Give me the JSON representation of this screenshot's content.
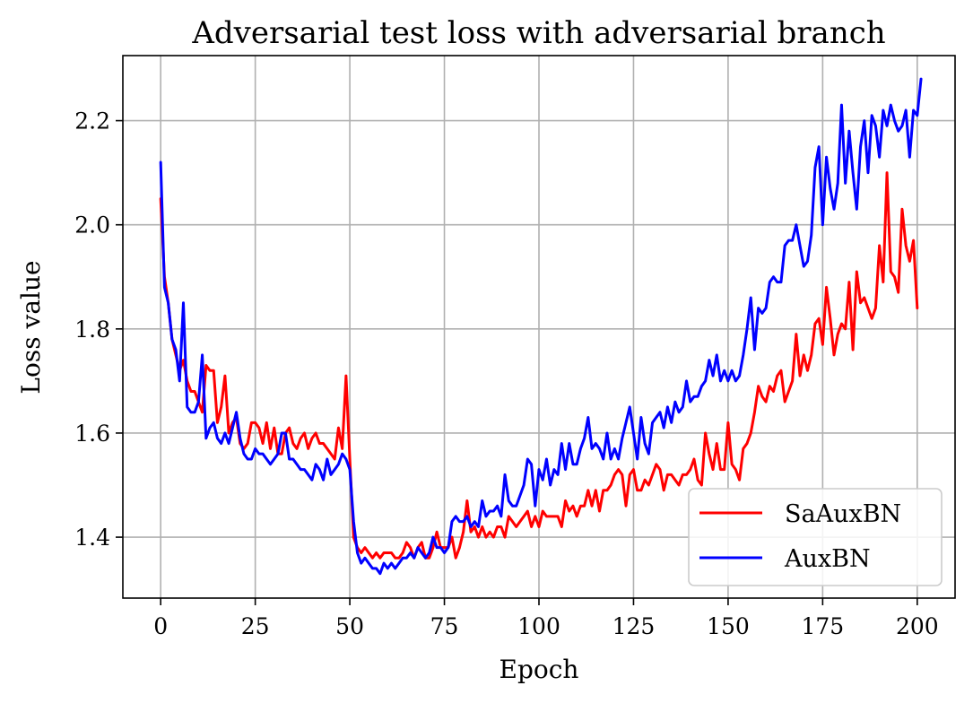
{
  "chart_data": {
    "type": "line",
    "title": "Adversarial test loss with adversarial branch",
    "xlabel": "Epoch",
    "ylabel": "Loss value",
    "xlim": [
      -10,
      210
    ],
    "ylim": [
      1.283,
      2.325
    ],
    "xticks": [
      0,
      25,
      50,
      75,
      100,
      125,
      150,
      175,
      200
    ],
    "yticks": [
      1.4,
      1.6,
      1.8,
      2.0,
      2.2
    ],
    "ytick_labels": [
      "1.4",
      "1.6",
      "1.8",
      "2.0",
      "2.2"
    ],
    "grid": true,
    "legend_position": "lower-right",
    "series": [
      {
        "name": "SaAuxBN",
        "color": "#ff0000",
        "values": [
          2.05,
          1.9,
          1.85,
          1.78,
          1.75,
          1.72,
          1.74,
          1.7,
          1.68,
          1.68,
          1.66,
          1.64,
          1.73,
          1.72,
          1.72,
          1.62,
          1.65,
          1.71,
          1.6,
          1.62,
          1.63,
          1.58,
          1.57,
          1.58,
          1.62,
          1.62,
          1.61,
          1.58,
          1.62,
          1.57,
          1.61,
          1.56,
          1.56,
          1.6,
          1.61,
          1.58,
          1.57,
          1.59,
          1.6,
          1.57,
          1.59,
          1.6,
          1.58,
          1.58,
          1.57,
          1.56,
          1.55,
          1.61,
          1.57,
          1.71,
          1.55,
          1.4,
          1.38,
          1.37,
          1.38,
          1.37,
          1.36,
          1.37,
          1.36,
          1.37,
          1.37,
          1.37,
          1.36,
          1.36,
          1.37,
          1.39,
          1.38,
          1.36,
          1.38,
          1.39,
          1.36,
          1.36,
          1.38,
          1.41,
          1.38,
          1.38,
          1.38,
          1.4,
          1.36,
          1.38,
          1.41,
          1.47,
          1.41,
          1.42,
          1.4,
          1.42,
          1.4,
          1.41,
          1.4,
          1.42,
          1.42,
          1.4,
          1.44,
          1.43,
          1.42,
          1.43,
          1.44,
          1.45,
          1.42,
          1.44,
          1.42,
          1.45,
          1.44,
          1.44,
          1.44,
          1.44,
          1.42,
          1.47,
          1.45,
          1.46,
          1.44,
          1.46,
          1.46,
          1.49,
          1.46,
          1.49,
          1.45,
          1.49,
          1.49,
          1.5,
          1.52,
          1.53,
          1.52,
          1.46,
          1.52,
          1.53,
          1.49,
          1.49,
          1.51,
          1.5,
          1.52,
          1.54,
          1.53,
          1.49,
          1.52,
          1.52,
          1.51,
          1.5,
          1.52,
          1.52,
          1.53,
          1.55,
          1.51,
          1.5,
          1.6,
          1.56,
          1.53,
          1.58,
          1.53,
          1.53,
          1.62,
          1.54,
          1.53,
          1.51,
          1.57,
          1.58,
          1.6,
          1.64,
          1.69,
          1.67,
          1.66,
          1.69,
          1.68,
          1.71,
          1.72,
          1.66,
          1.68,
          1.7,
          1.79,
          1.71,
          1.75,
          1.72,
          1.75,
          1.81,
          1.82,
          1.77,
          1.88,
          1.82,
          1.75,
          1.79,
          1.81,
          1.8,
          1.89,
          1.76,
          1.91,
          1.85,
          1.86,
          1.84,
          1.82,
          1.84,
          1.96,
          1.89,
          2.1,
          1.91,
          1.9,
          1.87,
          2.03,
          1.96,
          1.93,
          1.97,
          1.84
        ]
      },
      {
        "name": "AuxBN",
        "color": "#0000ff",
        "values": [
          2.12,
          1.88,
          1.85,
          1.78,
          1.76,
          1.7,
          1.85,
          1.65,
          1.64,
          1.64,
          1.66,
          1.75,
          1.59,
          1.61,
          1.62,
          1.59,
          1.58,
          1.6,
          1.58,
          1.61,
          1.64,
          1.59,
          1.56,
          1.55,
          1.55,
          1.57,
          1.56,
          1.56,
          1.55,
          1.54,
          1.55,
          1.56,
          1.6,
          1.6,
          1.55,
          1.55,
          1.54,
          1.53,
          1.53,
          1.52,
          1.51,
          1.54,
          1.53,
          1.51,
          1.55,
          1.52,
          1.53,
          1.54,
          1.56,
          1.55,
          1.53,
          1.43,
          1.37,
          1.35,
          1.36,
          1.35,
          1.34,
          1.34,
          1.33,
          1.35,
          1.34,
          1.35,
          1.34,
          1.35,
          1.36,
          1.36,
          1.37,
          1.36,
          1.38,
          1.37,
          1.36,
          1.37,
          1.4,
          1.38,
          1.38,
          1.37,
          1.38,
          1.43,
          1.44,
          1.43,
          1.43,
          1.44,
          1.42,
          1.43,
          1.42,
          1.47,
          1.44,
          1.45,
          1.45,
          1.46,
          1.44,
          1.52,
          1.47,
          1.46,
          1.46,
          1.48,
          1.5,
          1.55,
          1.54,
          1.46,
          1.53,
          1.51,
          1.55,
          1.5,
          1.53,
          1.52,
          1.58,
          1.53,
          1.58,
          1.54,
          1.54,
          1.57,
          1.59,
          1.63,
          1.57,
          1.58,
          1.57,
          1.55,
          1.6,
          1.55,
          1.57,
          1.55,
          1.59,
          1.62,
          1.65,
          1.6,
          1.55,
          1.63,
          1.58,
          1.56,
          1.62,
          1.63,
          1.64,
          1.61,
          1.65,
          1.62,
          1.66,
          1.64,
          1.65,
          1.7,
          1.66,
          1.67,
          1.67,
          1.69,
          1.7,
          1.74,
          1.71,
          1.75,
          1.7,
          1.72,
          1.7,
          1.72,
          1.7,
          1.71,
          1.75,
          1.8,
          1.86,
          1.76,
          1.84,
          1.83,
          1.84,
          1.89,
          1.9,
          1.89,
          1.89,
          1.96,
          1.97,
          1.97,
          2.0,
          1.96,
          1.92,
          1.93,
          1.98,
          2.11,
          2.15,
          2.0,
          2.13,
          2.07,
          2.03,
          2.08,
          2.23,
          2.08,
          2.18,
          2.1,
          2.03,
          2.15,
          2.2,
          2.1,
          2.21,
          2.19,
          2.13,
          2.22,
          2.19,
          2.23,
          2.2,
          2.18,
          2.19,
          2.22,
          2.13,
          2.22,
          2.21,
          2.28
        ]
      }
    ]
  }
}
